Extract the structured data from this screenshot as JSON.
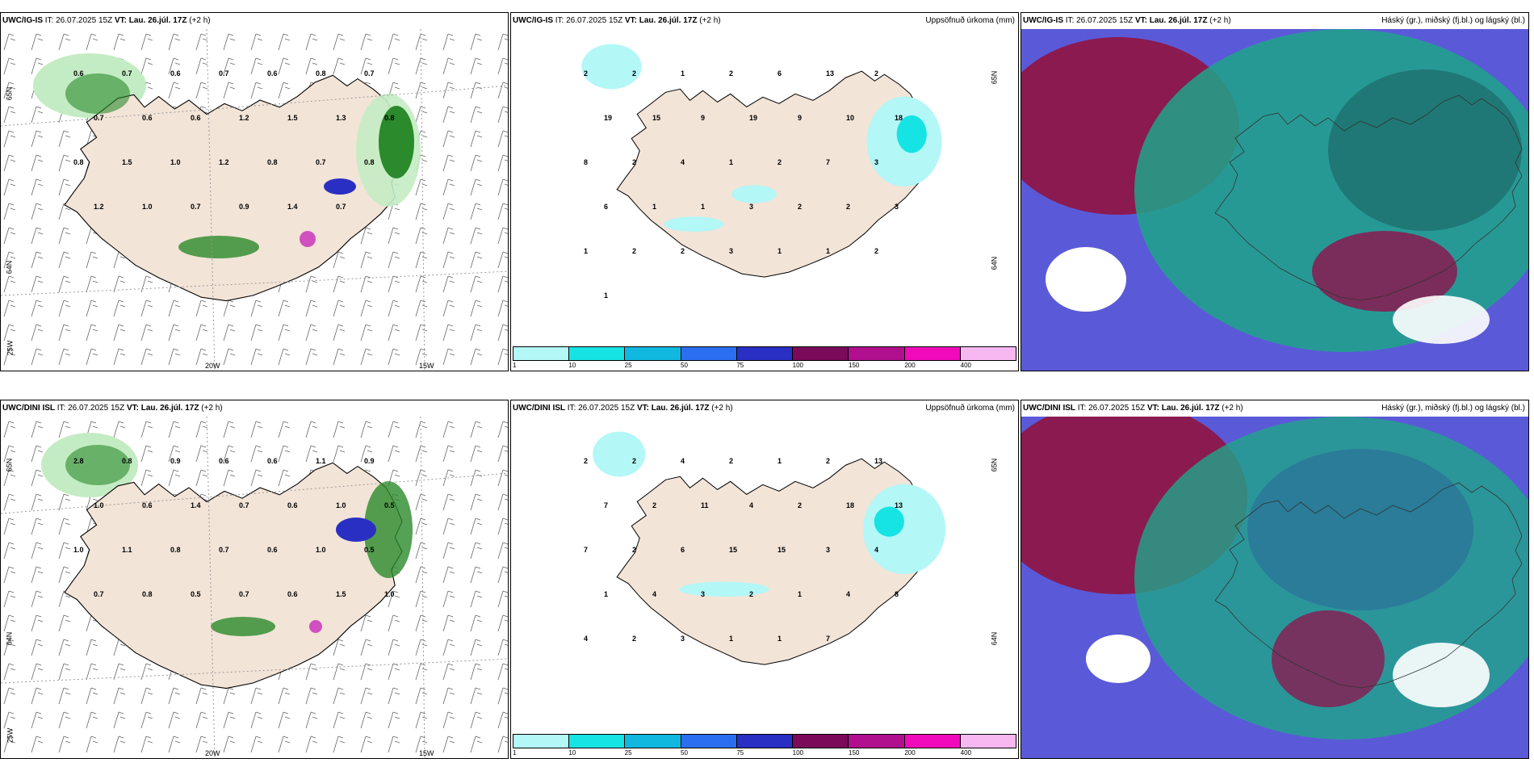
{
  "panels": [
    {
      "model": "UWC/IG-IS",
      "it_label": "IT:",
      "it_value": "26.07.2025 15Z",
      "vt_label": "VT:",
      "vt_value": "Lau. 26.júl. 17Z",
      "lead": "(+2 h)",
      "right_title": "",
      "lat_labels": [
        "65N",
        "64N",
        "25W"
      ],
      "lon_labels": [
        "20W",
        "15W"
      ],
      "values": [
        "0.6",
        "0.7",
        "0.6",
        "0.7",
        "0.6",
        "0.8",
        "0.7",
        "0.7",
        "0.6",
        "0.6",
        "1.2",
        "1.5",
        "1.3",
        "0.8",
        "0.8",
        "1.5",
        "1.0",
        "1.2",
        "0.8",
        "0.7",
        "0.8",
        "1.2",
        "1.0",
        "0.7",
        "0.9",
        "1.4",
        "0.7"
      ]
    },
    {
      "model": "UWC/IG-IS",
      "it_label": "IT:",
      "it_value": "26.07.2025 15Z",
      "vt_label": "VT:",
      "vt_value": "Lau. 26.júl. 17Z",
      "lead": "(+2 h)",
      "right_title": "Uppsöfnuð úrkoma (mm)",
      "lat_labels": [
        "65N",
        "64N"
      ],
      "lon_labels": [],
      "values": [
        "2",
        "2",
        "1",
        "2",
        "6",
        "13",
        "2",
        "19",
        "15",
        "9",
        "19",
        "9",
        "10",
        "18",
        "8",
        "2",
        "4",
        "1",
        "2",
        "7",
        "3",
        "6",
        "1",
        "1",
        "3",
        "2",
        "2",
        "3",
        "1",
        "2",
        "2",
        "3",
        "1",
        "1",
        "2",
        "1"
      ]
    },
    {
      "model": "UWC/IG-IS",
      "it_label": "IT:",
      "it_value": "26.07.2025 15Z",
      "vt_label": "VT:",
      "vt_value": "Lau. 26.júl. 17Z",
      "lead": "(+2 h)",
      "right_title": "Háský (gr.), miðský (fj.bl.) og lágský (bl.)",
      "lat_labels": [],
      "lon_labels": [],
      "values": []
    },
    {
      "model": "UWC/DINI ISL",
      "it_label": "IT:",
      "it_value": "26.07.2025 15Z",
      "vt_label": "VT:",
      "vt_value": "Lau. 26.júl. 17Z",
      "lead": "(+2 h)",
      "right_title": "",
      "lat_labels": [
        "65N",
        "64N",
        "25W"
      ],
      "lon_labels": [
        "20W",
        "15W"
      ],
      "values": [
        "2.8",
        "0.8",
        "0.9",
        "0.6",
        "0.6",
        "1.1",
        "0.9",
        "1.0",
        "0.6",
        "1.4",
        "0.7",
        "0.6",
        "1.0",
        "0.5",
        "1.0",
        "1.1",
        "0.8",
        "0.7",
        "0.6",
        "1.0",
        "0.5",
        "0.7",
        "0.8",
        "0.5",
        "0.7",
        "0.6",
        "1.5",
        "1.0"
      ]
    },
    {
      "model": "UWC/DINI ISL",
      "it_label": "IT:",
      "it_value": "26.07.2025 15Z",
      "vt_label": "VT:",
      "vt_value": "Lau. 26.júl. 17Z",
      "lead": "(+2 h)",
      "right_title": "Uppsöfnuð úrkoma (mm)",
      "lat_labels": [
        "65N",
        "64N"
      ],
      "lon_labels": [],
      "values": [
        "2",
        "2",
        "4",
        "2",
        "1",
        "2",
        "13",
        "7",
        "2",
        "11",
        "4",
        "2",
        "18",
        "13",
        "7",
        "2",
        "6",
        "15",
        "15",
        "3",
        "4",
        "1",
        "4",
        "3",
        "2",
        "1",
        "4",
        "8",
        "4",
        "2",
        "3",
        "1",
        "1",
        "7"
      ]
    },
    {
      "model": "UWC/DINI ISL",
      "it_label": "IT:",
      "it_value": "26.07.2025 15Z",
      "vt_label": "VT:",
      "vt_value": "Lau. 26.júl. 17Z",
      "lead": "(+2 h)",
      "right_title": "Háský (gr.), miðský (fj.bl.) og lágský (bl.)",
      "lat_labels": [],
      "lon_labels": [],
      "values": []
    }
  ],
  "legend": {
    "ticks": [
      "1",
      "10",
      "25",
      "50",
      "75",
      "100",
      "150",
      "200",
      "400"
    ],
    "colors": [
      "#b3f7f7",
      "#16e3e3",
      "#10b8e0",
      "#2b6ef0",
      "#2a2fc4",
      "#7a0a5a",
      "#b0108e",
      "#f00aba",
      "#f7b8f2"
    ]
  },
  "colors": {
    "land": "#f2e4d7",
    "coast": "#000000",
    "green_light": "#c4ecc4",
    "green_dark": "#1e6a1e",
    "cloud_purple": "#8a1a50",
    "cloud_blue": "#5a5ad8",
    "cloud_teal": "#1fa58a"
  }
}
